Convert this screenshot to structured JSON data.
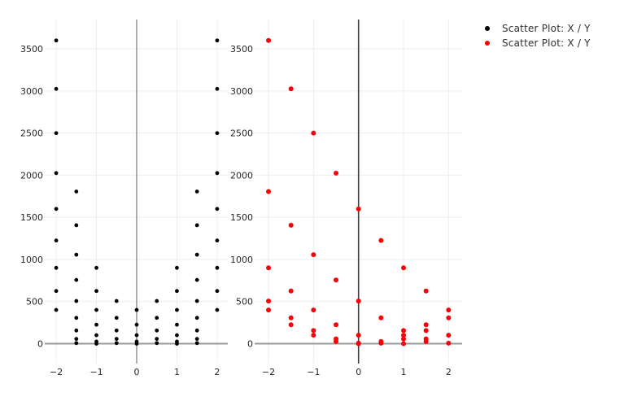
{
  "chart_data": {
    "type": "scatter",
    "title": "",
    "legend": {
      "position": "top-right",
      "items": [
        {
          "label": "Scatter Plot: X / Y",
          "color": "#000000"
        },
        {
          "label": "Scatter Plot: X / Y",
          "color": "#fb0007"
        }
      ]
    },
    "x_axis": {
      "tick_values": [
        -2,
        -1,
        0,
        1,
        2
      ],
      "tick_labels": [
        "−2",
        "−1",
        "0",
        "1",
        "2"
      ],
      "range": [
        -2.3,
        2.3
      ]
    },
    "y_axis": {
      "tick_values": [
        0,
        500,
        1000,
        1500,
        2000,
        2500,
        3000,
        3500
      ],
      "tick_labels": [
        "0",
        "500",
        "1000",
        "1500",
        "2000",
        "2500",
        "3000",
        "3500"
      ],
      "range": [
        -240,
        3860
      ]
    },
    "grid": {
      "on": true,
      "color": "#ededed",
      "zero_line_color": "#999999"
    },
    "subplots": [
      {
        "name": "black-scatter",
        "legend_ref": 0,
        "marker_color": "#000000",
        "marker_radius": 2.4,
        "zero_vline_color": "#9a9a9a",
        "x_values": [
          -2,
          -1.5,
          -1,
          -0.5,
          0,
          0.5,
          1,
          1.5,
          2
        ],
        "columns": [
          [
            3600,
            3025,
            2500,
            2025,
            1600,
            1225,
            900,
            625,
            400
          ],
          [
            1806.25,
            1406.25,
            1056.25,
            756.25,
            506.25,
            306.25,
            156.25,
            56.25,
            6.25
          ],
          [
            900,
            625,
            400,
            225,
            100,
            25,
            0
          ],
          [
            506.25,
            306.25,
            156.25,
            56.25,
            6.25
          ],
          [
            400,
            225,
            100,
            25,
            0
          ],
          [
            506.25,
            306.25,
            156.25,
            56.25,
            6.25
          ],
          [
            900,
            625,
            400,
            225,
            100,
            25,
            0
          ],
          [
            1806.25,
            1406.25,
            1056.25,
            756.25,
            506.25,
            306.25,
            156.25,
            56.25,
            6.25
          ],
          [
            3600,
            3025,
            2500,
            2025,
            1600,
            1225,
            900,
            625,
            400
          ]
        ]
      },
      {
        "name": "red-scatter",
        "legend_ref": 1,
        "marker_color": "#fb0007",
        "marker_radius": 3.0,
        "zero_vline_color": "#3a3a3a",
        "x_values": [
          -2,
          -1.5,
          -1,
          -0.5,
          0,
          0.5,
          1,
          1.5,
          2
        ],
        "columns": [
          [
            3600,
            1806.25,
            900,
            506.25,
            400
          ],
          [
            3025,
            1406.25,
            625,
            306.25,
            225
          ],
          [
            2500,
            1056.25,
            400,
            156.25,
            100
          ],
          [
            2025,
            756.25,
            225,
            56.25,
            25
          ],
          [
            1600,
            506.25,
            100,
            6.25,
            0
          ],
          [
            1225,
            306.25,
            25,
            6.25
          ],
          [
            900,
            156.25,
            100,
            56.25,
            0
          ],
          [
            625,
            225,
            156.25,
            56.25,
            25
          ],
          [
            400,
            306.25,
            100,
            6.25
          ]
        ]
      }
    ]
  }
}
